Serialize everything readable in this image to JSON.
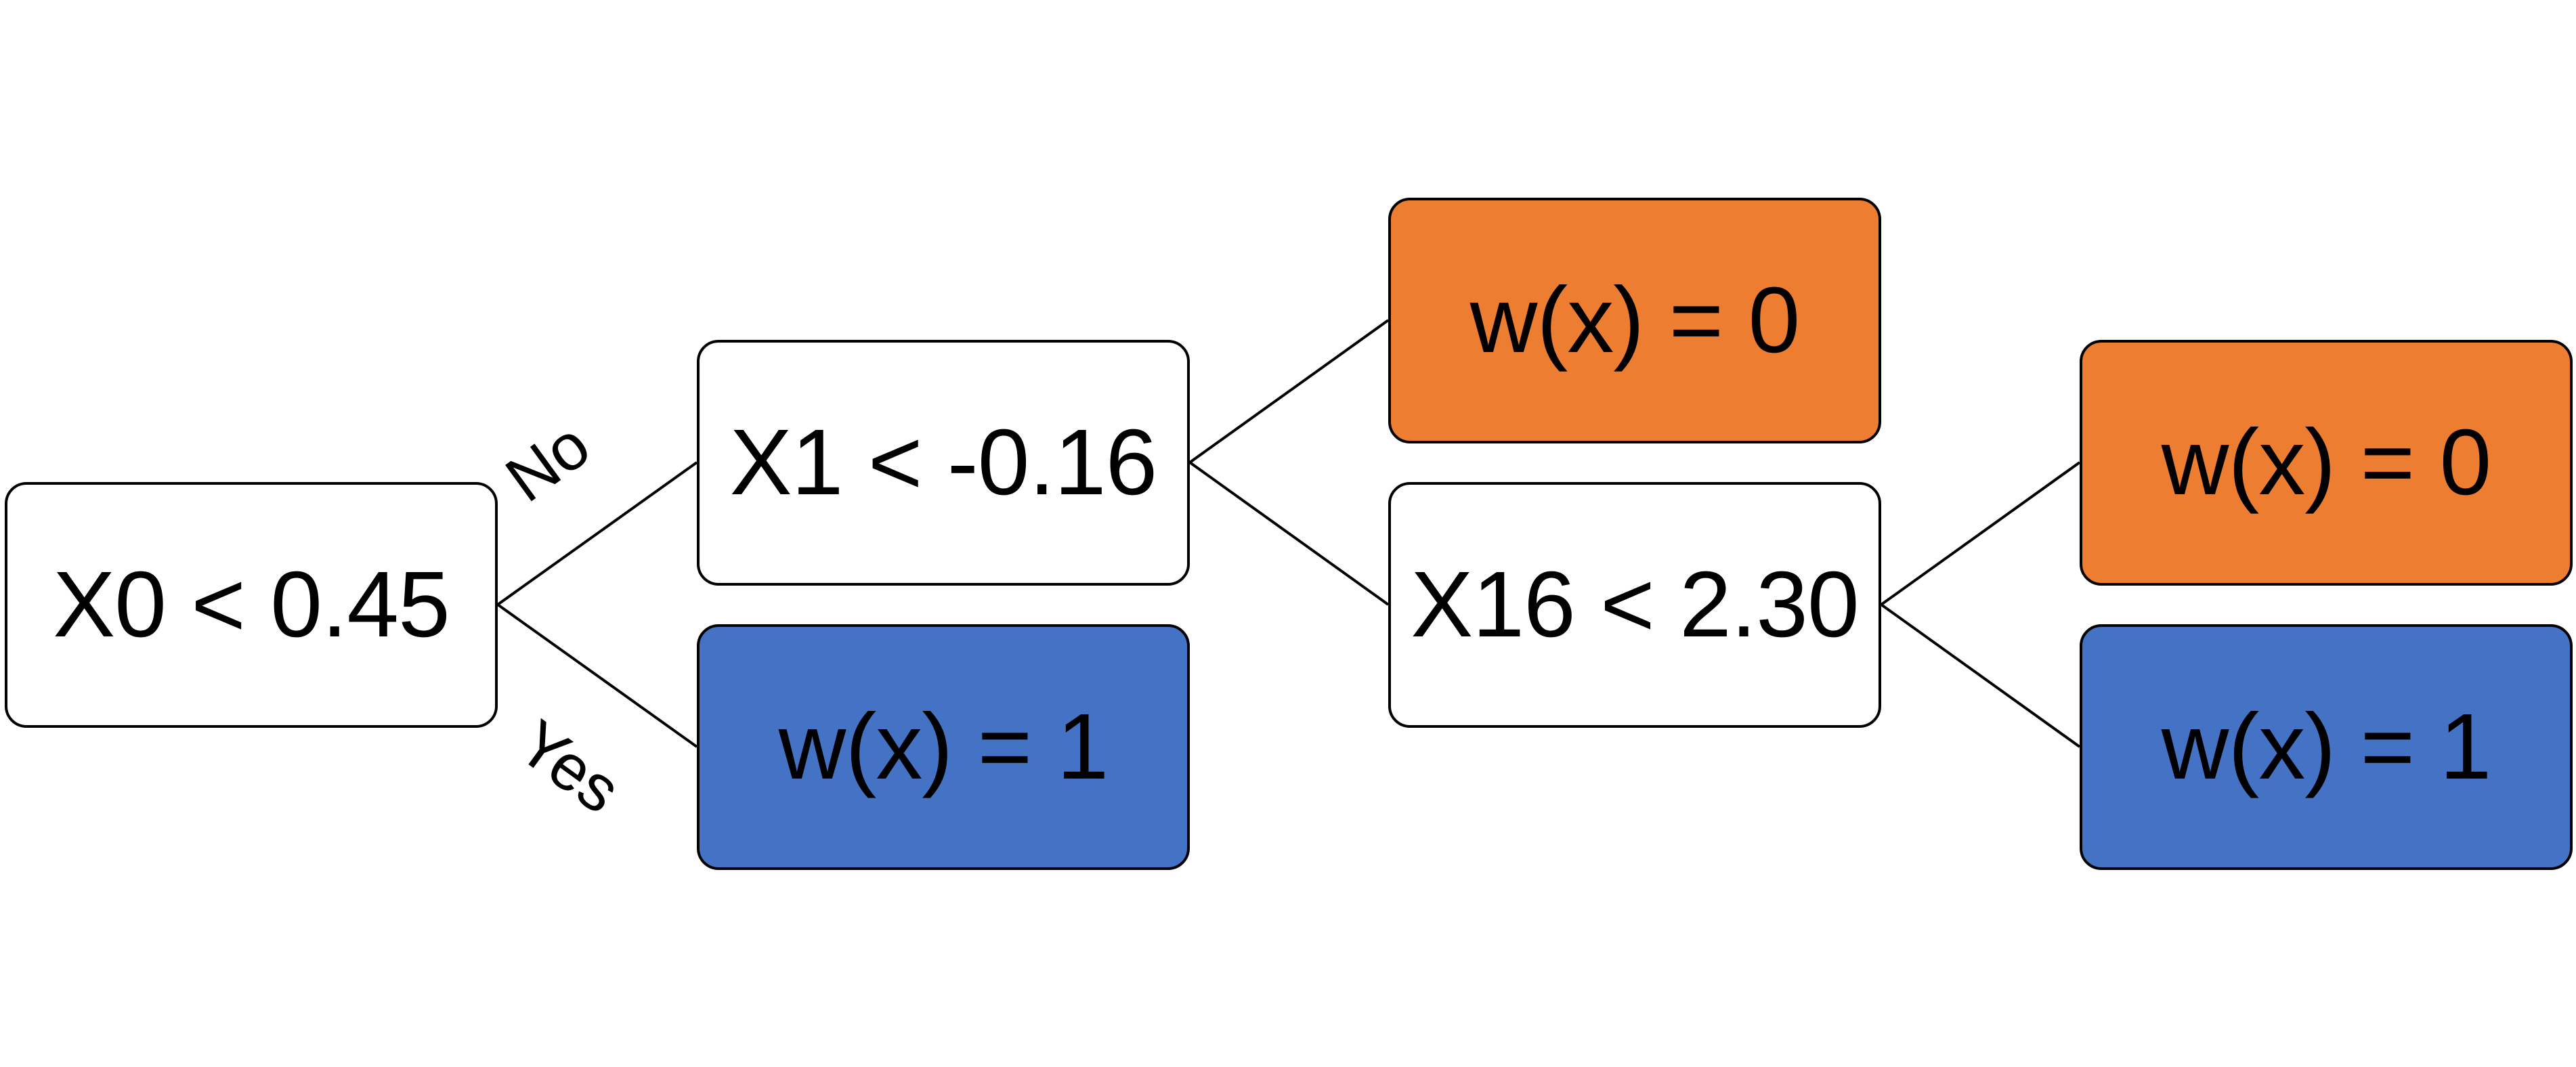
{
  "tree": {
    "root": {
      "label": "X0 < 0.45"
    },
    "no_branch": {
      "edge_label": "No",
      "node": {
        "label": "X1 < -0.16"
      },
      "upper_leaf": {
        "label": "w(x) = 0"
      },
      "lower_node": {
        "label": "X16 < 2.30"
      },
      "lower_node_upper_leaf": {
        "label": "w(x) = 0"
      },
      "lower_node_lower_leaf": {
        "label": "w(x) = 1"
      }
    },
    "yes_branch": {
      "edge_label": "Yes",
      "leaf": {
        "label": "w(x) = 1"
      }
    }
  },
  "colors": {
    "leaf_zero": "#ED7D31",
    "leaf_one": "#4472C4",
    "split_node": "#FFFFFF",
    "stroke": "#000000"
  }
}
